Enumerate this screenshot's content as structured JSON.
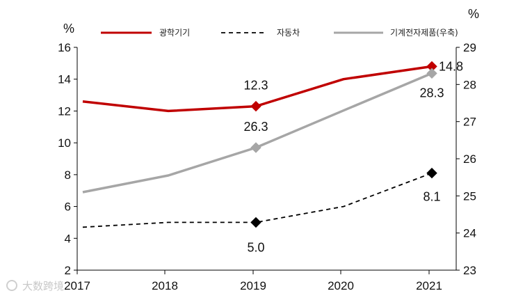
{
  "chart_data": {
    "type": "line",
    "categories": [
      "2017",
      "2018",
      "2019",
      "2020",
      "2021"
    ],
    "left_unit": "%",
    "right_unit": "%",
    "left_axis": {
      "min": 2,
      "max": 16,
      "ticks": [
        2,
        4,
        6,
        8,
        10,
        12,
        14,
        16
      ]
    },
    "right_axis": {
      "min": 23,
      "max": 29,
      "ticks": [
        23,
        24,
        25,
        26,
        27,
        28,
        29
      ]
    },
    "series": [
      {
        "name": "광학기기",
        "axis": "left",
        "color": "#c00000",
        "style": "solid",
        "values": [
          12.6,
          12.0,
          12.3,
          14.0,
          14.8
        ],
        "marker_points": [
          2,
          4
        ],
        "labels": {
          "2": "12.3",
          "4": "14.8"
        }
      },
      {
        "name": "자동차",
        "axis": "left",
        "color": "#000000",
        "style": "dashed",
        "values": [
          4.7,
          5.0,
          5.0,
          6.0,
          8.1
        ],
        "marker_points": [
          2,
          4
        ],
        "labels": {
          "2": "5.0",
          "4": "8.1"
        }
      },
      {
        "name": "기계전자제품(우축)",
        "axis": "right",
        "color": "#a6a6a6",
        "style": "solid",
        "values": [
          25.1,
          25.55,
          26.3,
          27.3,
          28.3
        ],
        "marker_points": [
          2,
          4
        ],
        "labels": {
          "2": "26.3",
          "4": "28.3"
        }
      }
    ],
    "legend_position": "top"
  },
  "watermark": "大数跨境"
}
